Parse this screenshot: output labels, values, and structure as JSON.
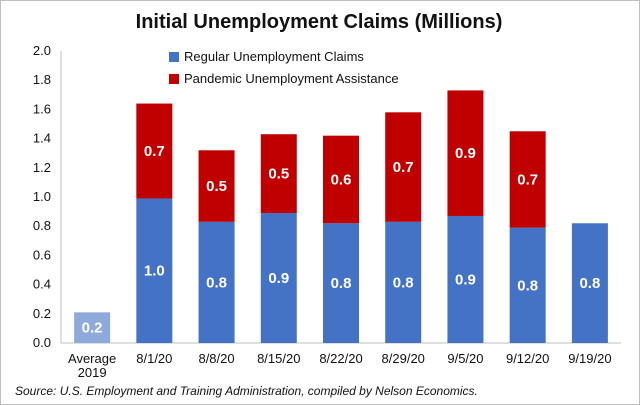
{
  "chart_data": {
    "type": "bar",
    "stacked": true,
    "title": "Initial Unemployment Claims (Millions)",
    "categories": [
      "Average 2019",
      "8/1/20",
      "8/8/20",
      "8/15/20",
      "8/22/20",
      "8/29/20",
      "9/5/20",
      "9/12/20",
      "9/19/20"
    ],
    "series": [
      {
        "name": "Regular Unemployment Claims",
        "color": "#4472c4",
        "values": [
          0.21,
          0.99,
          0.83,
          0.89,
          0.82,
          0.83,
          0.87,
          0.79,
          0.82
        ],
        "labels": [
          "0.2",
          "1.0",
          "0.8",
          "0.9",
          "0.8",
          "0.8",
          "0.9",
          "0.8",
          "0.8"
        ]
      },
      {
        "name": "Pandemic Unemployment Assistance",
        "color": "#c00000",
        "values": [
          null,
          0.65,
          0.49,
          0.54,
          0.6,
          0.75,
          0.86,
          0.66,
          null
        ],
        "labels": [
          "",
          "0.7",
          "0.5",
          "0.5",
          "0.6",
          "0.7",
          "0.9",
          "0.7",
          ""
        ]
      }
    ],
    "first_bar_color": "#8eaadb",
    "ylim": [
      0,
      2.0
    ],
    "yticks": [
      "0.0",
      "0.2",
      "0.4",
      "0.6",
      "0.8",
      "1.0",
      "1.2",
      "1.4",
      "1.6",
      "1.8",
      "2.0"
    ],
    "grid": false,
    "legend_position": "top-left",
    "source": "Source: U.S. Employment and Training Administration, compiled by Nelson Economics."
  }
}
